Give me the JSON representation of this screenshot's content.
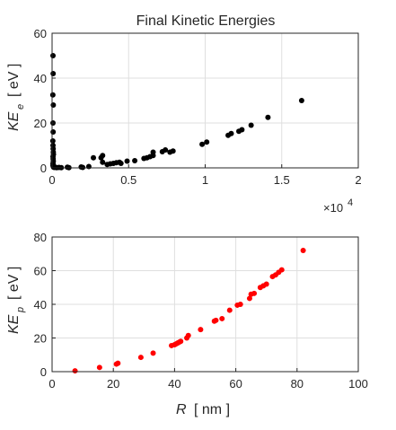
{
  "chart_data": [
    {
      "type": "scatter",
      "title": "Final Kinetic Energies",
      "ylabel": "KE",
      "ylabel_sub": "e",
      "ylabel_unit": "[ eV ]",
      "xlabel": "",
      "x_multiplier_label": "×10",
      "x_multiplier_exponent": "4",
      "xlim": [
        0,
        20000
      ],
      "ylim": [
        0,
        60
      ],
      "xticks": [
        0,
        5000,
        10000,
        15000,
        20000
      ],
      "xtick_labels": [
        "0",
        "0.5",
        "1",
        "1.5",
        "2"
      ],
      "yticks": [
        0,
        20,
        40,
        60
      ],
      "ytick_labels": [
        "0",
        "20",
        "40",
        "60"
      ],
      "grid": true,
      "marker_color": "#000000",
      "series": [
        {
          "points": [
            [
              60,
              50
            ],
            [
              70,
              42
            ],
            [
              50,
              32.5
            ],
            [
              80,
              28
            ],
            [
              60,
              20
            ],
            [
              70,
              16
            ],
            [
              50,
              12
            ],
            [
              60,
              10
            ],
            [
              70,
              8.5
            ],
            [
              80,
              7
            ],
            [
              90,
              6
            ],
            [
              60,
              5
            ],
            [
              70,
              4
            ],
            [
              80,
              3
            ],
            [
              60,
              2
            ],
            [
              70,
              1.5
            ],
            [
              60,
              1
            ],
            [
              80,
              0.8
            ],
            [
              90,
              0.5
            ],
            [
              100,
              0.3
            ],
            [
              150,
              0.2
            ],
            [
              200,
              0.3
            ],
            [
              300,
              0.1
            ],
            [
              450,
              0.2
            ],
            [
              600,
              0.1
            ],
            [
              1000,
              0.3
            ],
            [
              1100,
              0.1
            ],
            [
              1900,
              0.4
            ],
            [
              2000,
              0.2
            ],
            [
              2400,
              0.6
            ],
            [
              2700,
              4.5
            ],
            [
              3200,
              4.5
            ],
            [
              3300,
              2.5
            ],
            [
              3300,
              5.5
            ],
            [
              3600,
              1.5
            ],
            [
              3800,
              1.8
            ],
            [
              4000,
              2.0
            ],
            [
              4200,
              2.3
            ],
            [
              4400,
              2.5
            ],
            [
              4500,
              2.0
            ],
            [
              4900,
              3.0
            ],
            [
              5400,
              3.2
            ],
            [
              6000,
              4.2
            ],
            [
              6200,
              4.5
            ],
            [
              6400,
              5.0
            ],
            [
              6600,
              5.5
            ],
            [
              6600,
              7.0
            ],
            [
              7200,
              7.2
            ],
            [
              7400,
              8.0
            ],
            [
              7700,
              7.0
            ],
            [
              7900,
              7.5
            ],
            [
              9800,
              10.5
            ],
            [
              10100,
              11.5
            ],
            [
              11500,
              14.5
            ],
            [
              11700,
              15.3
            ],
            [
              12200,
              16.3
            ],
            [
              12400,
              17.0
            ],
            [
              13000,
              19.0
            ],
            [
              14100,
              22.5
            ],
            [
              16300,
              30.0
            ]
          ]
        }
      ]
    },
    {
      "type": "scatter",
      "title": "",
      "ylabel": "KE",
      "ylabel_sub": "p",
      "ylabel_unit": "[ eV ]",
      "xlabel": "R",
      "xlabel_unit": "[ nm ]",
      "xlim": [
        0,
        100
      ],
      "ylim": [
        0,
        80
      ],
      "xticks": [
        0,
        20,
        40,
        60,
        80,
        100
      ],
      "xtick_labels": [
        "0",
        "20",
        "40",
        "60",
        "80",
        "100"
      ],
      "yticks": [
        0,
        20,
        40,
        60,
        80
      ],
      "ytick_labels": [
        "0",
        "20",
        "40",
        "60",
        "80"
      ],
      "grid": true,
      "marker_color": "#ff0000",
      "series": [
        {
          "points": [
            [
              7.5,
              0.5
            ],
            [
              15.5,
              2.5
            ],
            [
              21,
              4.5
            ],
            [
              21.5,
              5.0
            ],
            [
              29,
              8.5
            ],
            [
              33,
              11
            ],
            [
              39,
              15.5
            ],
            [
              40,
              16.0
            ],
            [
              40.5,
              16.5
            ],
            [
              41,
              17.0
            ],
            [
              41.5,
              17.5
            ],
            [
              42,
              18.0
            ],
            [
              44,
              20.0
            ],
            [
              44.5,
              21.5
            ],
            [
              48.5,
              25.0
            ],
            [
              53,
              30.0
            ],
            [
              53.5,
              30.5
            ],
            [
              55.5,
              31.5
            ],
            [
              58,
              36.5
            ],
            [
              60.5,
              39.5
            ],
            [
              61.5,
              40.0
            ],
            [
              64.5,
              43.5
            ],
            [
              65,
              46.0
            ],
            [
              66,
              46.5
            ],
            [
              68,
              50.0
            ],
            [
              69,
              51.0
            ],
            [
              70,
              52.0
            ],
            [
              72,
              56.5
            ],
            [
              73,
              57.5
            ],
            [
              74,
              59.0
            ],
            [
              75,
              60.5
            ],
            [
              82,
              72.0
            ]
          ]
        }
      ]
    }
  ]
}
